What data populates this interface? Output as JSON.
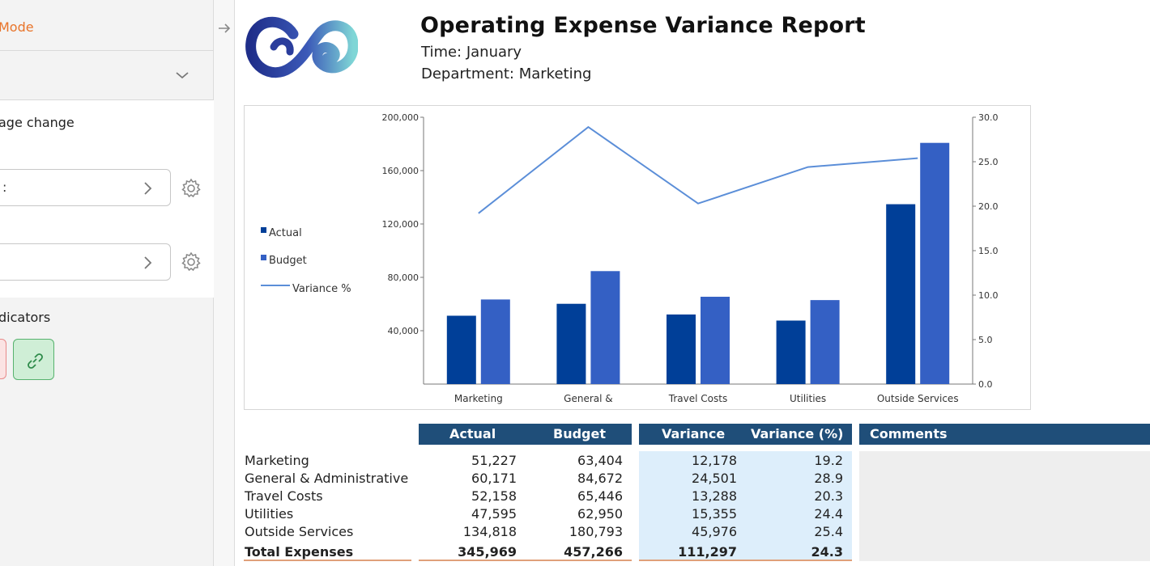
{
  "left_panel": {
    "mode_label": "Mode",
    "change_label": "age change",
    "selector1_value": ":",
    "selector2_value": "",
    "indicators_label": "dicators"
  },
  "report": {
    "title": "Operating Expense Variance Report",
    "time_line": "Time: January",
    "department_line": "Department: Marketing"
  },
  "chart_data": {
    "type": "bar",
    "categories": [
      "Marketing",
      "General &",
      "Travel Costs",
      "Utilities",
      "Outside Services"
    ],
    "series": [
      {
        "name": "Actual",
        "type": "bar",
        "axis": "left",
        "color": "#003f98",
        "values": [
          51227,
          60171,
          52158,
          47595,
          134818
        ]
      },
      {
        "name": "Budget",
        "type": "bar",
        "axis": "left",
        "color": "#3460c4",
        "values": [
          63404,
          84672,
          65446,
          62950,
          180793
        ]
      },
      {
        "name": "Variance %",
        "type": "line",
        "axis": "right",
        "color": "#5b8ed8",
        "values": [
          19.2,
          28.9,
          20.3,
          24.4,
          25.4
        ]
      }
    ],
    "left_axis": {
      "ylim": [
        0,
        200000
      ],
      "ticks": [
        "40,000",
        "80,000",
        "120,000",
        "160,000",
        "200,000"
      ]
    },
    "right_axis": {
      "ylim": [
        0,
        30
      ],
      "ticks": [
        "0.0",
        "5.0",
        "10.0",
        "15.0",
        "20.0",
        "25.0",
        "30.0"
      ]
    },
    "legend_position": "left"
  },
  "table": {
    "headers": {
      "actual": "Actual",
      "budget": "Budget",
      "variance": "Variance",
      "variance_pct": "Variance (%)",
      "comments": "Comments"
    },
    "rows": [
      {
        "label": "Marketing",
        "actual": "51,227",
        "budget": "63,404",
        "variance": "12,178",
        "pct": "19.2"
      },
      {
        "label": "General & Administrative",
        "actual": "60,171",
        "budget": "84,672",
        "variance": "24,501",
        "pct": "28.9"
      },
      {
        "label": "Travel Costs",
        "actual": "52,158",
        "budget": "65,446",
        "variance": "13,288",
        "pct": "20.3"
      },
      {
        "label": "Utilities",
        "actual": "47,595",
        "budget": "62,950",
        "variance": "15,355",
        "pct": "24.4"
      },
      {
        "label": "Outside Services",
        "actual": "134,818",
        "budget": "180,793",
        "variance": "45,976",
        "pct": "25.4"
      }
    ],
    "total": {
      "label": "Total Expenses",
      "actual": "345,969",
      "budget": "457,266",
      "variance": "111,297",
      "pct": "24.3"
    }
  },
  "colors": {
    "header_bg": "#1f4e79",
    "variance_bg": "#ddeefb",
    "accent": "#e8742a"
  }
}
